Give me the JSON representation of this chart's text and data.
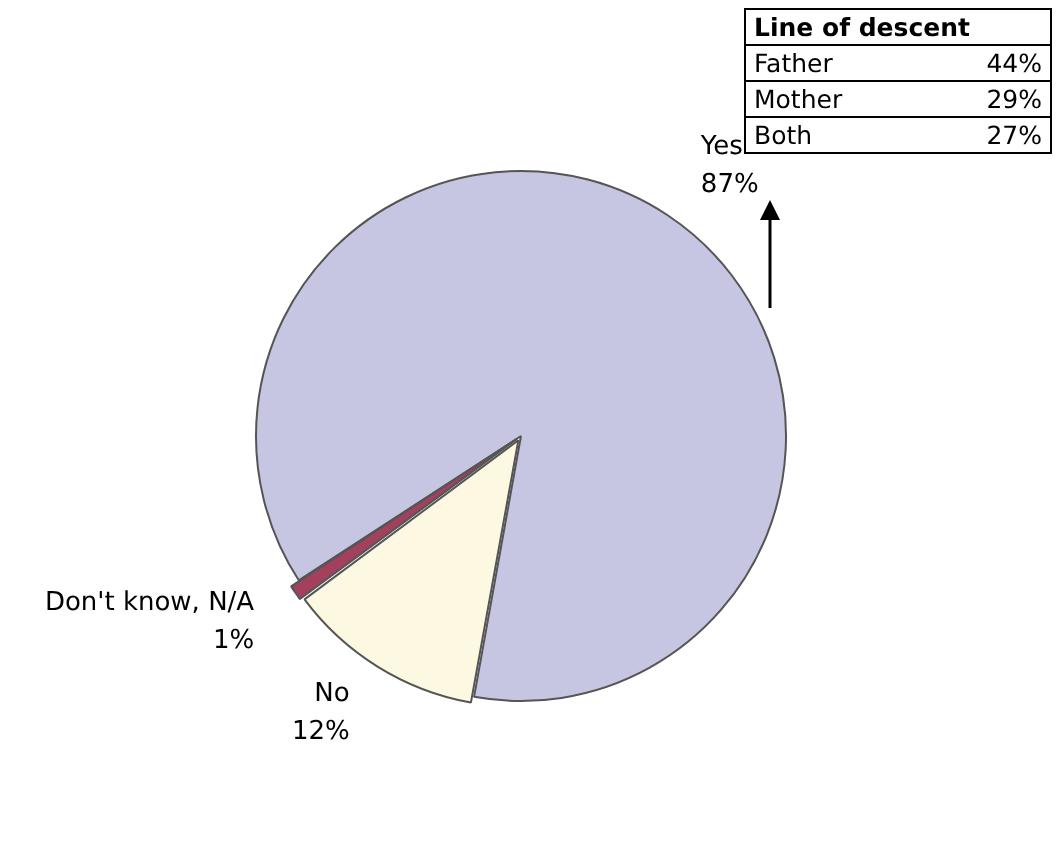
{
  "chart_data": [
    {
      "type": "pie",
      "categories": [
        "Yes",
        "No",
        "Don't know, N/A"
      ],
      "values": [
        87,
        12,
        1
      ],
      "colors": [
        "#c6c6e2",
        "#fdf8e1",
        "#a3405e"
      ],
      "value_labels": [
        "87%",
        "12%",
        "1%"
      ]
    },
    {
      "type": "other",
      "title": "Line of descent",
      "categories": [
        "Father",
        "Mother",
        "Both"
      ],
      "value_labels": [
        "44%",
        "29%",
        "27%"
      ]
    }
  ]
}
